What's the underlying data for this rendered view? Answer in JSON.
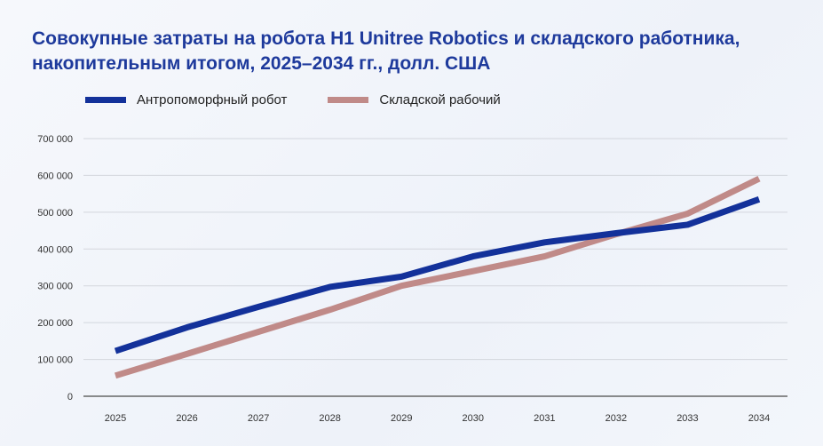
{
  "chart_data": {
    "type": "line",
    "title": "Совокупные затраты на робота H1 Unitree Robotics и складского работника, накопительным итогом, 2025–2034 гг., долл. США",
    "xlabel": "",
    "ylabel": "",
    "categories": [
      "2025",
      "2026",
      "2027",
      "2028",
      "2029",
      "2030",
      "2031",
      "2032",
      "2033",
      "2034"
    ],
    "ylim": [
      0,
      700000
    ],
    "yticks": [
      0,
      100000,
      200000,
      300000,
      400000,
      500000,
      600000,
      700000
    ],
    "ytick_labels": [
      "0",
      "100 000",
      "200 000",
      "300 000",
      "400 000",
      "500 000",
      "600 000",
      "700 000"
    ],
    "grid": true,
    "legend_position": "top-left",
    "series": [
      {
        "name": "Антропоморфный робот",
        "color": "#13319a",
        "values": [
          123000,
          187000,
          243000,
          297000,
          325000,
          380000,
          418000,
          443000,
          466000,
          535000
        ]
      },
      {
        "name": "Складской рабочий",
        "color": "#c08a88",
        "values": [
          56000,
          115000,
          175000,
          235000,
          300000,
          340000,
          380000,
          440000,
          496000,
          591000
        ]
      }
    ]
  }
}
